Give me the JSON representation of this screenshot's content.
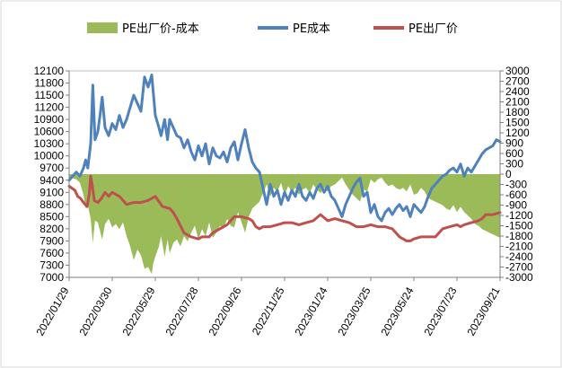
{
  "chart_data": {
    "type": "area+line",
    "title": "",
    "legend": [
      "PE出厂价-成本",
      "PE成本",
      "PE出厂价"
    ],
    "legend_position": "top",
    "colors": {
      "spread": "#9bbb59",
      "cost": "#4f81bd",
      "price": "#c0504d"
    },
    "x_labels": [
      "2022/01/29",
      "2022/03/30",
      "2022/05/29",
      "2022/07/28",
      "2022/09/26",
      "2022/11/25",
      "2023/01/24",
      "2023/03/25",
      "2023/05/24",
      "2023/07/23",
      "2023/09/21"
    ],
    "x_range": [
      0,
      600
    ],
    "y_left": {
      "ylim": [
        7000,
        12100
      ],
      "ticks": [
        7000,
        7300,
        7600,
        7900,
        8200,
        8500,
        8800,
        9100,
        9400,
        9700,
        10000,
        10300,
        10600,
        10900,
        11200,
        11500,
        11800,
        12100
      ]
    },
    "y_right": {
      "ylim": [
        -3000,
        3000
      ],
      "ticks": [
        -3000,
        -2700,
        -2400,
        -2100,
        -1800,
        -1500,
        -1200,
        -900,
        -600,
        -300,
        0,
        300,
        600,
        900,
        1200,
        1500,
        1800,
        2100,
        2400,
        2700,
        3000
      ]
    },
    "series": [
      {
        "name": "PE成本",
        "axis": "left",
        "kind": "line",
        "x": [
          0,
          10,
          15,
          20,
          23,
          26,
          30,
          33,
          36,
          40,
          43,
          46,
          50,
          55,
          60,
          65,
          70,
          75,
          80,
          85,
          90,
          95,
          100,
          105,
          110,
          115,
          117,
          120,
          125,
          128,
          133,
          137,
          140,
          145,
          150,
          155,
          160,
          165,
          170,
          175,
          180,
          185,
          190,
          195,
          200,
          205,
          210,
          215,
          220,
          225,
          230,
          235,
          240,
          245,
          250,
          255,
          260,
          265,
          270,
          275,
          280,
          285,
          290,
          295,
          300,
          305,
          310,
          315,
          320,
          325,
          330,
          335,
          340,
          345,
          350,
          355,
          360,
          365,
          370,
          375,
          380,
          385,
          390,
          395,
          400,
          405,
          410,
          415,
          420,
          425,
          430,
          435,
          440,
          445,
          450,
          455,
          460,
          465,
          470,
          475,
          480,
          485,
          490,
          495,
          500,
          505,
          510,
          515,
          520,
          525,
          530,
          535,
          540,
          545,
          550,
          555,
          560,
          565,
          570,
          575,
          580,
          585,
          590,
          595,
          600
        ],
        "y": [
          9400,
          9600,
          9500,
          9700,
          9900,
          9700,
          10300,
          11750,
          10400,
          10600,
          11000,
          11450,
          10700,
          10500,
          10800,
          10650,
          11000,
          10700,
          10900,
          11200,
          11500,
          11300,
          11100,
          11950,
          11700,
          12000,
          11600,
          11000,
          10700,
          10500,
          10900,
          10400,
          10900,
          10700,
          10500,
          10450,
          10200,
          10400,
          10100,
          9900,
          10250,
          10000,
          10300,
          9800,
          10200,
          10000,
          9950,
          10100,
          9850,
          10200,
          10350,
          9900,
          10300,
          10650,
          10200,
          9850,
          9700,
          9600,
          9200,
          8800,
          9300,
          9000,
          9150,
          8800,
          9100,
          8900,
          9150,
          9000,
          9300,
          9000,
          8900,
          9100,
          8950,
          9200,
          9300,
          9100,
          9250,
          9000,
          8900,
          8700,
          8500,
          8800,
          9000,
          9200,
          9350,
          9450,
          9000,
          9100,
          8600,
          8800,
          8500,
          8400,
          8600,
          8700,
          8550,
          8700,
          8800,
          8650,
          8750,
          8500,
          8800,
          8700,
          8600,
          8750,
          9000,
          9200,
          9300,
          9400,
          9500,
          9550,
          9650,
          9700,
          9600,
          9800,
          9500,
          9700,
          9600,
          9750,
          9900,
          10050,
          10150,
          10200,
          10250,
          10400,
          10350
        ]
      },
      {
        "name": "PE出厂价",
        "axis": "left",
        "kind": "line",
        "x": [
          0,
          8,
          12,
          16,
          20,
          25,
          28,
          30,
          32,
          35,
          40,
          45,
          50,
          55,
          60,
          70,
          80,
          90,
          100,
          110,
          120,
          130,
          140,
          145,
          150,
          160,
          170,
          180,
          185,
          195,
          200,
          210,
          220,
          225,
          230,
          240,
          250,
          255,
          260,
          265,
          270,
          280,
          290,
          300,
          310,
          320,
          330,
          340,
          350,
          360,
          370,
          380,
          390,
          400,
          410,
          420,
          430,
          440,
          450,
          460,
          470,
          475,
          480,
          490,
          500,
          510,
          515,
          520,
          530,
          540,
          545,
          550,
          560,
          570,
          575,
          580,
          590,
          600
        ],
        "y": [
          9250,
          9150,
          9000,
          8950,
          8850,
          8750,
          9050,
          9500,
          9300,
          8900,
          8850,
          8950,
          9100,
          9000,
          9100,
          9000,
          8800,
          8850,
          8850,
          8900,
          9000,
          8750,
          8700,
          8600,
          8450,
          8100,
          8000,
          7950,
          8000,
          8000,
          8100,
          8200,
          8300,
          8400,
          8500,
          8500,
          8450,
          8400,
          8250,
          8200,
          8250,
          8250,
          8300,
          8350,
          8350,
          8300,
          8350,
          8400,
          8550,
          8400,
          8450,
          8400,
          8350,
          8250,
          8250,
          8300,
          8250,
          8250,
          8200,
          8000,
          7900,
          7900,
          7950,
          8000,
          8000,
          8000,
          8100,
          8200,
          8250,
          8300,
          8250,
          8300,
          8350,
          8400,
          8450,
          8550,
          8550,
          8600
        ]
      },
      {
        "name": "PE出厂价-成本",
        "axis": "right",
        "kind": "area",
        "x": [
          0,
          5,
          10,
          15,
          20,
          23,
          26,
          30,
          33,
          36,
          40,
          43,
          46,
          50,
          55,
          60,
          65,
          70,
          75,
          80,
          85,
          90,
          95,
          100,
          105,
          110,
          115,
          117,
          120,
          125,
          128,
          133,
          137,
          140,
          145,
          150,
          155,
          160,
          165,
          170,
          175,
          180,
          185,
          190,
          195,
          200,
          205,
          210,
          215,
          220,
          225,
          230,
          235,
          240,
          245,
          250,
          255,
          260,
          265,
          270,
          275,
          280,
          285,
          290,
          295,
          300,
          305,
          310,
          315,
          320,
          325,
          330,
          335,
          340,
          345,
          350,
          355,
          360,
          365,
          370,
          375,
          380,
          385,
          390,
          395,
          400,
          405,
          410,
          415,
          420,
          425,
          430,
          435,
          440,
          445,
          450,
          455,
          460,
          465,
          470,
          475,
          480,
          485,
          490,
          495,
          500,
          505,
          510,
          515,
          520,
          525,
          530,
          535,
          540,
          545,
          550,
          555,
          560,
          565,
          570,
          575,
          580,
          585,
          590,
          595,
          600
        ],
        "y": [
          -180,
          -120,
          -150,
          -250,
          -600,
          -1000,
          -900,
          -1300,
          -2000,
          -1350,
          -1400,
          -1650,
          -1900,
          -1450,
          -1300,
          -1550,
          -1450,
          -1600,
          -1400,
          -1800,
          -2100,
          -2500,
          -2200,
          -2350,
          -2750,
          -2700,
          -2900,
          -2600,
          -2400,
          -2100,
          -1800,
          -2400,
          -1900,
          -2300,
          -2000,
          -1900,
          -2100,
          -1800,
          -1950,
          -1700,
          -1500,
          -1900,
          -1600,
          -1800,
          -1400,
          -1850,
          -1700,
          -1500,
          -1600,
          -1300,
          -1500,
          -1550,
          -1100,
          -1400,
          -1700,
          -1250,
          -1000,
          -900,
          -800,
          -550,
          -300,
          -650,
          -400,
          -500,
          -250,
          -600,
          -350,
          -500,
          -400,
          -600,
          -450,
          -400,
          -550,
          -300,
          -450,
          -550,
          -400,
          -500,
          -350,
          -300,
          -200,
          -100,
          -300,
          -450,
          -600,
          -700,
          -800,
          -450,
          -500,
          -150,
          -250,
          -150,
          -100,
          -250,
          -350,
          -300,
          -400,
          -450,
          -400,
          -500,
          -300,
          -600,
          -550,
          -400,
          -500,
          -700,
          -750,
          -800,
          -850,
          -900,
          -1000,
          -1050,
          -900,
          -1100,
          -950,
          -1100,
          -1200,
          -1300,
          -1450,
          -1500,
          -1600,
          -1650,
          -1700,
          -1750,
          -1800,
          -1850
        ]
      }
    ]
  }
}
